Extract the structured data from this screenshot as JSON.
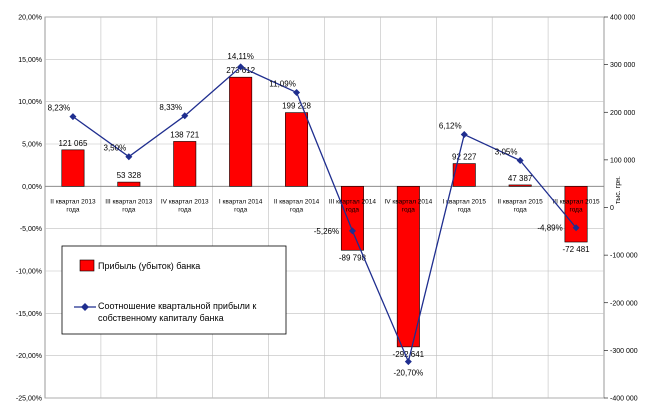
{
  "chart_data": {
    "type": "bar",
    "categories": [
      "II квартал 2013 года",
      "III квартал 2013 года",
      "IV квартал 2013 года",
      "I квартал 2014 года",
      "II квартал 2014 года",
      "III квартал 2014 года",
      "IV квартал 2014 года",
      "I квартал 2015 года",
      "II квартал 2015 года",
      "III квартал 2015 года"
    ],
    "series": [
      {
        "name": "Прибыль (убыток) банка",
        "type": "bar",
        "axis": "right",
        "values": [
          121065,
          53328,
          138721,
          273612,
          199228,
          -89798,
          -292641,
          92227,
          47387,
          -72481
        ],
        "labels": [
          "121 065",
          "53 328",
          "138 721",
          "273 612",
          "199 228",
          "-89 798",
          "-292 641",
          "92 227",
          "47 387",
          "-72 481"
        ],
        "color": "#ff0000"
      },
      {
        "name": "Соотношение квартальной прибыли к собственному капиталу банка",
        "type": "line",
        "axis": "left",
        "values": [
          8.23,
          3.5,
          8.33,
          14.11,
          11.09,
          -5.26,
          -20.7,
          6.12,
          3.05,
          -4.89
        ],
        "labels": [
          "8,23%",
          "3,50%",
          "8,33%",
          "14,11%",
          "11,09%",
          "-5,26%",
          "-20,70%",
          "6,12%",
          "3,05%",
          "-4,89%"
        ],
        "color": "#1f2e8f"
      }
    ],
    "left_axis": {
      "ylim": [
        -25,
        20
      ],
      "ticks": [
        20,
        15,
        10,
        5,
        0,
        -5,
        -10,
        -15,
        -20,
        -25
      ],
      "tick_labels": [
        "20,00%",
        "15,00%",
        "10,00%",
        "5,00%",
        "0,00%",
        "-5,00%",
        "-10,00%",
        "-15,00%",
        "-20,00%",
        "-25,00%"
      ]
    },
    "right_axis": {
      "ylim": [
        -400000,
        400000
      ],
      "ticks": [
        400000,
        300000,
        200000,
        100000,
        0,
        -100000,
        -200000,
        -300000,
        -400000
      ],
      "tick_labels": [
        "400 000",
        "300 000",
        "200 000",
        "100 000",
        "0",
        "-100 000",
        "-200 000",
        "-300 000",
        "-400 000"
      ],
      "label": "тыс. грн."
    },
    "grid": true,
    "legend": {
      "placement": "bottom-left",
      "items": [
        {
          "label": "Прибыль (убыток)  банка"
        },
        {
          "label_line1": "Соотношение квартальной прибыли к",
          "label_line2": "собственному капиталу банка"
        }
      ]
    },
    "colors": {
      "bar": "#ff0000",
      "line": "#1f2e8f",
      "grid": "#bfbfbf"
    }
  }
}
